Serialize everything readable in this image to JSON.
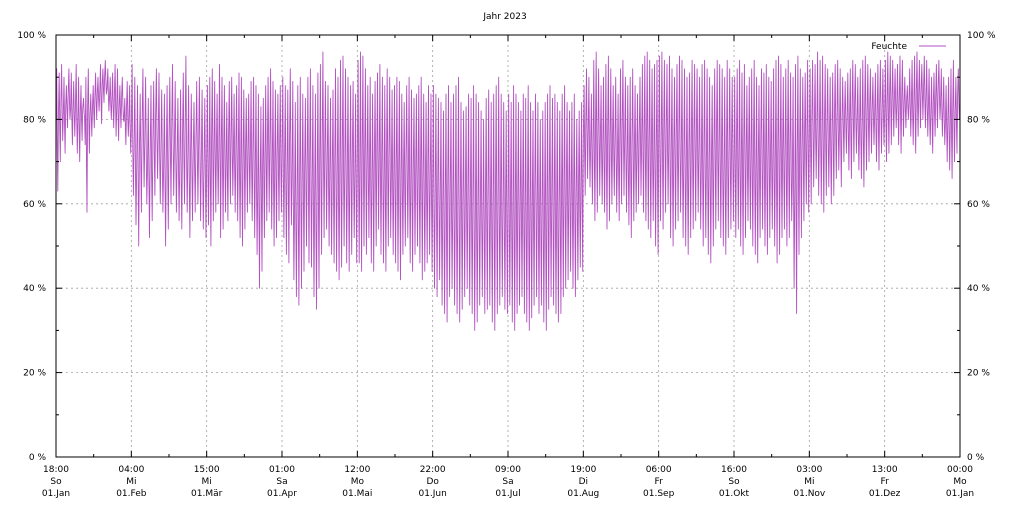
{
  "chart_data": {
    "type": "line",
    "title": "Jahr 2023",
    "xlabel": "",
    "ylabel": "",
    "ylim": [
      0,
      100
    ],
    "x_range": [
      "2023-01-01T18:00",
      "2024-01-01T00:00"
    ],
    "grid": true,
    "legend_position": "top-right",
    "y_ticks": [
      {
        "value": 0,
        "label": "0 %"
      },
      {
        "value": 20,
        "label": "20 %"
      },
      {
        "value": 40,
        "label": "40 %"
      },
      {
        "value": 60,
        "label": "60 %"
      },
      {
        "value": 80,
        "label": "80 %"
      },
      {
        "value": 100,
        "label": "100 %"
      }
    ],
    "x_ticks": [
      {
        "time": "18:00",
        "day": "So",
        "date": "01.Jan"
      },
      {
        "time": "04:00",
        "day": "Mi",
        "date": "01.Feb"
      },
      {
        "time": "15:00",
        "day": "Mi",
        "date": "01.Mär"
      },
      {
        "time": "01:00",
        "day": "Sa",
        "date": "01.Apr"
      },
      {
        "time": "12:00",
        "day": "Mo",
        "date": "01.Mai"
      },
      {
        "time": "22:00",
        "day": "Do",
        "date": "01.Jun"
      },
      {
        "time": "09:00",
        "day": "Sa",
        "date": "01.Jul"
      },
      {
        "time": "19:00",
        "day": "Di",
        "date": "01.Aug"
      },
      {
        "time": "06:00",
        "day": "Fr",
        "date": "01.Sep"
      },
      {
        "time": "16:00",
        "day": "So",
        "date": "01.Okt"
      },
      {
        "time": "03:00",
        "day": "Mi",
        "date": "01.Nov"
      },
      {
        "time": "13:00",
        "day": "Fr",
        "date": "01.Dez"
      },
      {
        "time": "00:00",
        "day": "Mo",
        "date": "01.Jan"
      }
    ],
    "series": [
      {
        "name": "Feuchte",
        "color": "#b252c0",
        "x_dates": [
          "01.Jan",
          "01.Feb",
          "01.Mär",
          "01.Apr",
          "01.Mai",
          "01.Jun",
          "01.Jul",
          "01.Aug",
          "01.Sep",
          "01.Okt",
          "01.Nov",
          "01.Dez",
          "01.Jan"
        ],
        "daily_max": [
          [
            92,
            91,
            93,
            90,
            88,
            92,
            91,
            89,
            93,
            90,
            88,
            85,
            90,
            92,
            86,
            88,
            91,
            90,
            93,
            92,
            94,
            92,
            90,
            91,
            93,
            92,
            88,
            90,
            85,
            89,
            88
          ],
          [
            93,
            90,
            88,
            86,
            92,
            90,
            85,
            88,
            89,
            92,
            91,
            87,
            86,
            88,
            90,
            93,
            89,
            85,
            87,
            91,
            95,
            88,
            86,
            84,
            89,
            90,
            87,
            85
          ],
          [
            88,
            90,
            92,
            89,
            86,
            93,
            90,
            88,
            84,
            89,
            90,
            86,
            88,
            91,
            90,
            87,
            85,
            86,
            89,
            90,
            88,
            86,
            83,
            85,
            88,
            90,
            92,
            89,
            87,
            86,
            88
          ],
          [
            90,
            88,
            87,
            92,
            89,
            84,
            88,
            90,
            86,
            85,
            90,
            92,
            88,
            86,
            91,
            93,
            96,
            89,
            88,
            85,
            87,
            92,
            90,
            94,
            95,
            92,
            90,
            88,
            89,
            86
          ],
          [
            94,
            96,
            95,
            92,
            88,
            90,
            86,
            89,
            91,
            93,
            90,
            88,
            92,
            90,
            87,
            88,
            90,
            89,
            86,
            84,
            88,
            90,
            87,
            85,
            86,
            88,
            90,
            86,
            84,
            88,
            86
          ],
          [
            88,
            86,
            85,
            84,
            82,
            86,
            88,
            84,
            86,
            88,
            90,
            84,
            82,
            83,
            86,
            85,
            88,
            86,
            84,
            82,
            80,
            85,
            87,
            84,
            86,
            88,
            90,
            86,
            84,
            82
          ],
          [
            86,
            84,
            88,
            86,
            84,
            82,
            86,
            85,
            88,
            84,
            82,
            86,
            84,
            80,
            82,
            84,
            86,
            88,
            85,
            86,
            84,
            82,
            86,
            88,
            84,
            82,
            84,
            86,
            80,
            82,
            84
          ],
          [
            88,
            92,
            90,
            86,
            94,
            96,
            92,
            88,
            90,
            93,
            95,
            92,
            88,
            90,
            86,
            92,
            94,
            90,
            88,
            90,
            92,
            88,
            86,
            90,
            93,
            95,
            96,
            94,
            92,
            93,
            94
          ],
          [
            95,
            96,
            94,
            93,
            95,
            92,
            90,
            93,
            95,
            94,
            92,
            90,
            91,
            94,
            93,
            92,
            90,
            93,
            94,
            92,
            90,
            88,
            92,
            94,
            93,
            92,
            90,
            94,
            92,
            90
          ],
          [
            90,
            92,
            94,
            91,
            93,
            88,
            90,
            92,
            94,
            90,
            88,
            92,
            91,
            93,
            90,
            89,
            92,
            94,
            95,
            93,
            90,
            92,
            94,
            91,
            90,
            93,
            95,
            92,
            90,
            91,
            94
          ],
          [
            92,
            94,
            93,
            96,
            94,
            95,
            93,
            92,
            90,
            91,
            93,
            94,
            92,
            90,
            89,
            91,
            92,
            94,
            93,
            90,
            92,
            94,
            95,
            93,
            92,
            90,
            91,
            93,
            94,
            92
          ],
          [
            94,
            96,
            95,
            94,
            92,
            93,
            95,
            94,
            90,
            88,
            92,
            94,
            95,
            96,
            94,
            93,
            95,
            94,
            92,
            90,
            91,
            93,
            94,
            92,
            90,
            88,
            90,
            92,
            94,
            90,
            92
          ]
        ],
        "daily_min": [
          [
            63,
            70,
            75,
            72,
            78,
            80,
            74,
            76,
            72,
            70,
            75,
            80,
            58,
            72,
            76,
            78,
            80,
            82,
            79,
            84,
            86,
            82,
            80,
            78,
            76,
            75,
            78,
            80,
            74,
            76,
            72
          ],
          [
            62,
            55,
            50,
            58,
            64,
            60,
            52,
            56,
            62,
            66,
            60,
            58,
            50,
            54,
            60,
            62,
            58,
            56,
            54,
            60,
            58,
            52,
            56,
            58,
            60,
            56,
            54,
            52
          ],
          [
            55,
            50,
            56,
            58,
            60,
            52,
            54,
            58,
            56,
            60,
            62,
            58,
            56,
            52,
            50,
            54,
            58,
            60,
            56,
            52,
            48,
            40,
            44,
            52,
            56,
            58,
            54,
            50,
            52,
            56,
            58
          ],
          [
            52,
            48,
            46,
            55,
            42,
            38,
            36,
            40,
            44,
            50,
            46,
            45,
            38,
            35,
            40,
            48,
            52,
            54,
            50,
            48,
            46,
            44,
            42,
            45,
            50,
            46,
            44,
            48,
            52,
            46
          ],
          [
            46,
            44,
            50,
            48,
            52,
            46,
            44,
            50,
            54,
            48,
            46,
            44,
            50,
            52,
            48,
            46,
            44,
            42,
            48,
            50,
            52,
            46,
            44,
            48,
            50,
            46,
            42,
            44,
            46,
            48,
            44
          ],
          [
            40,
            38,
            42,
            36,
            34,
            32,
            38,
            40,
            36,
            34,
            32,
            35,
            38,
            40,
            36,
            34,
            30,
            32,
            36,
            38,
            34,
            35,
            36,
            32,
            30,
            34,
            36,
            38,
            35,
            34
          ],
          [
            36,
            32,
            30,
            34,
            36,
            38,
            34,
            32,
            30,
            33,
            36,
            38,
            34,
            36,
            32,
            30,
            35,
            38,
            36,
            34,
            32,
            34,
            38,
            40,
            42,
            44,
            40,
            38,
            42,
            45,
            44
          ],
          [
            62,
            66,
            64,
            60,
            56,
            58,
            62,
            60,
            58,
            54,
            56,
            60,
            62,
            58,
            56,
            60,
            62,
            58,
            55,
            52,
            56,
            58,
            60,
            62,
            58,
            56,
            54,
            52,
            56,
            50,
            48
          ],
          [
            56,
            54,
            58,
            60,
            52,
            50,
            54,
            56,
            58,
            52,
            50,
            48,
            52,
            54,
            56,
            58,
            54,
            50,
            52,
            48,
            46,
            50,
            54,
            56,
            52,
            50,
            48,
            52,
            54,
            56
          ],
          [
            52,
            54,
            50,
            48,
            52,
            56,
            54,
            50,
            48,
            46,
            52,
            54,
            50,
            48,
            52,
            54,
            50,
            46,
            48,
            52,
            54,
            50,
            52,
            56,
            40,
            34,
            48,
            52,
            56,
            60,
            58
          ],
          [
            60,
            64,
            66,
            62,
            60,
            58,
            62,
            64,
            60,
            62,
            66,
            68,
            64,
            70,
            72,
            68,
            66,
            70,
            72,
            68,
            66,
            64,
            68,
            70,
            72,
            74,
            70,
            68,
            72,
            74
          ],
          [
            70,
            72,
            74,
            76,
            78,
            74,
            72,
            76,
            78,
            80,
            76,
            74,
            72,
            76,
            78,
            80,
            78,
            76,
            74,
            72,
            76,
            78,
            80,
            76,
            74,
            70,
            68,
            66,
            70,
            72,
            80
          ]
        ]
      }
    ]
  }
}
